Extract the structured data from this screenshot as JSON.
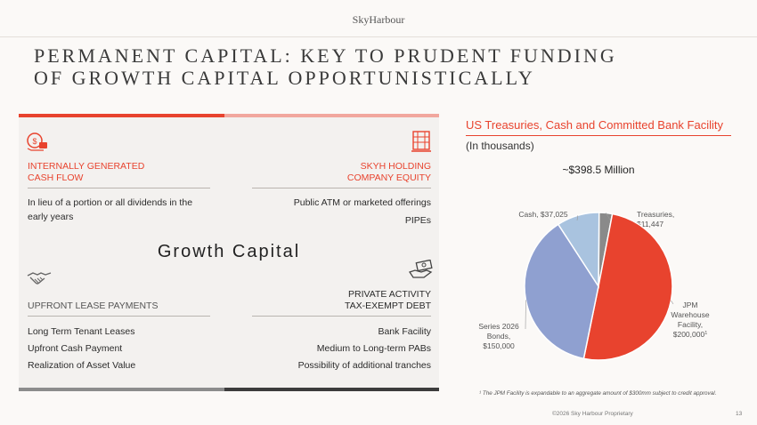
{
  "brand": "SkyHarbour",
  "title_line1": "PERMANENT CAPITAL: KEY TO PRUDENT FUNDING",
  "title_line2": "OF GROWTH CAPITAL OPPORTUNISTICALLY",
  "center_title": "Growth Capital",
  "quadrants": {
    "top_left": {
      "heading_line1": "INTERNALLY GENERATED",
      "heading_line2": "CASH FLOW",
      "items": [
        "In lieu of a portion or all dividends in the",
        "early years"
      ],
      "icon": "cash-flow-icon"
    },
    "top_right": {
      "heading_line1": "SKYH HOLDING",
      "heading_line2": "COMPANY EQUITY",
      "items": [
        "Public ATM or marketed offerings",
        "PIPEs"
      ],
      "icon": "building-icon"
    },
    "bottom_left": {
      "heading_line1": "UPFRONT LEASE PAYMENTS",
      "items": [
        "Long Term Tenant Leases",
        "Upfront Cash Payment",
        "Realization of Asset Value"
      ],
      "icon": "handshake-icon"
    },
    "bottom_right": {
      "heading_line1": "PRIVATE ACTIVITY",
      "heading_line2": "TAX-EXEMPT DEBT",
      "items": [
        "Bank Facility",
        "Medium to Long-term PABs",
        "Possibility of additional tranches"
      ],
      "icon": "money-hand-icon"
    }
  },
  "colors": {
    "accent": "#e8432e",
    "pink": "#f1a79e",
    "jpm": "#e8432e",
    "series": "#8fa0d0",
    "cash": "#a9c3df",
    "treasuries": "#8a8a8a"
  },
  "chart_data": {
    "type": "pie",
    "title": "US Treasuries, Cash and Committed Bank Facility",
    "subtitle": "(In thousands)",
    "total_label": "~$398.5 Million",
    "slices": [
      {
        "name": "Treasuries",
        "value": 11447,
        "label_lines": [
          "Treasuries,",
          "$11,447"
        ],
        "color": "#8a8a8a"
      },
      {
        "name": "JPM Warehouse Facility",
        "value": 200000,
        "label_lines": [
          "JPM",
          "Warehouse",
          "Facility,",
          "$200,000"
        ],
        "footnote_mark": "1",
        "color": "#e8432e"
      },
      {
        "name": "Series 2026 Bonds",
        "value": 150000,
        "label_lines": [
          "Series 2026",
          "Bonds,",
          "$150,000"
        ],
        "color": "#8fa0d0"
      },
      {
        "name": "Cash",
        "value": 37025,
        "label_lines": [
          "Cash, $37,025"
        ],
        "color": "#a9c3df"
      }
    ]
  },
  "footnote": "¹ The JPM Facility is expandable to an aggregate amount of $300mm subject to credit approval.",
  "footer": "©2026 Sky Harbour Proprietary",
  "page_number": "13"
}
